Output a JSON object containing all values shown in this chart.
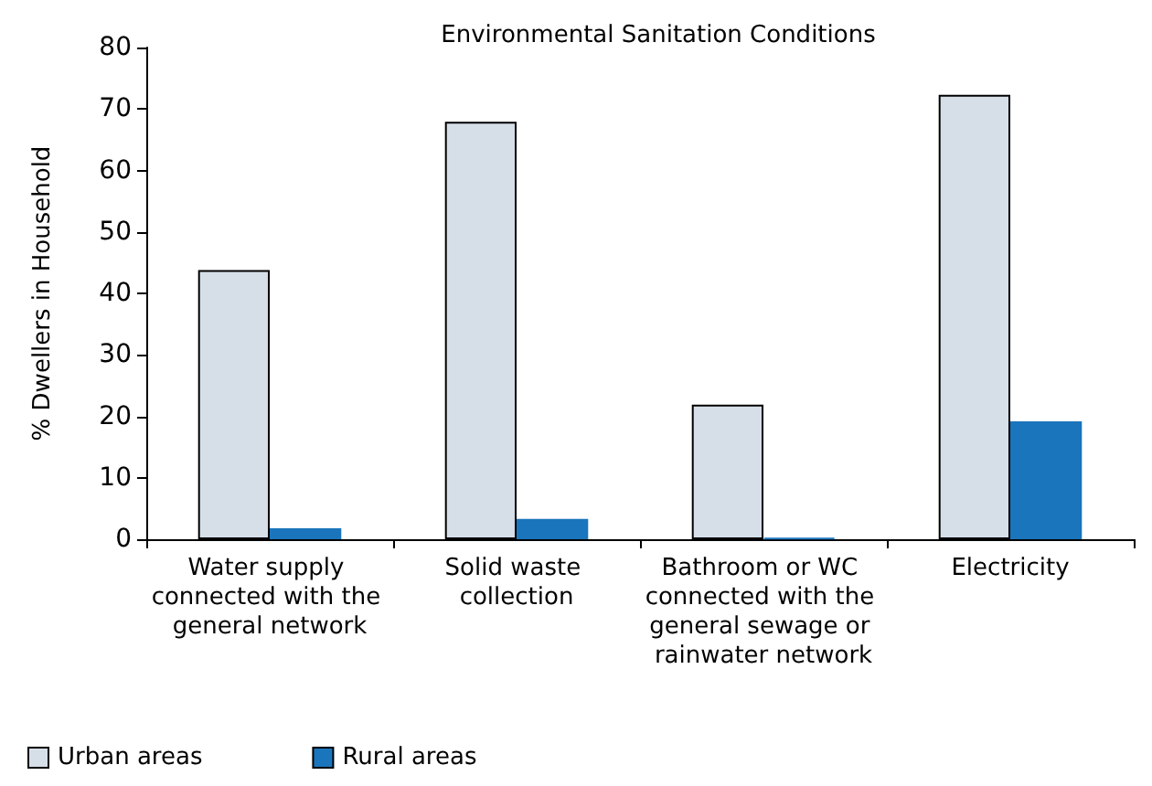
{
  "chart_data": {
    "type": "bar",
    "title": "Environmental Sanitation Conditions",
    "ylabel": "% Dwellers in Household",
    "categories": [
      "Water supply connected with the general network",
      "Solid waste collection",
      "Bathroom or WC connected with the general sewage or rainwater network",
      "Electricity"
    ],
    "series": [
      {
        "name": "Urban areas",
        "color": "#d6dfe8",
        "values": [
          43.8,
          67.9,
          21.9,
          72.3
        ]
      },
      {
        "name": "Rural areas",
        "color": "#1a75bc",
        "values": [
          1.8,
          3.3,
          0.2,
          19.2
        ]
      }
    ],
    "ylim": [
      0,
      80
    ],
    "yticks": [
      0,
      10,
      20,
      30,
      40,
      50,
      60,
      70,
      80
    ],
    "grid": false,
    "legend": "bottom left"
  }
}
